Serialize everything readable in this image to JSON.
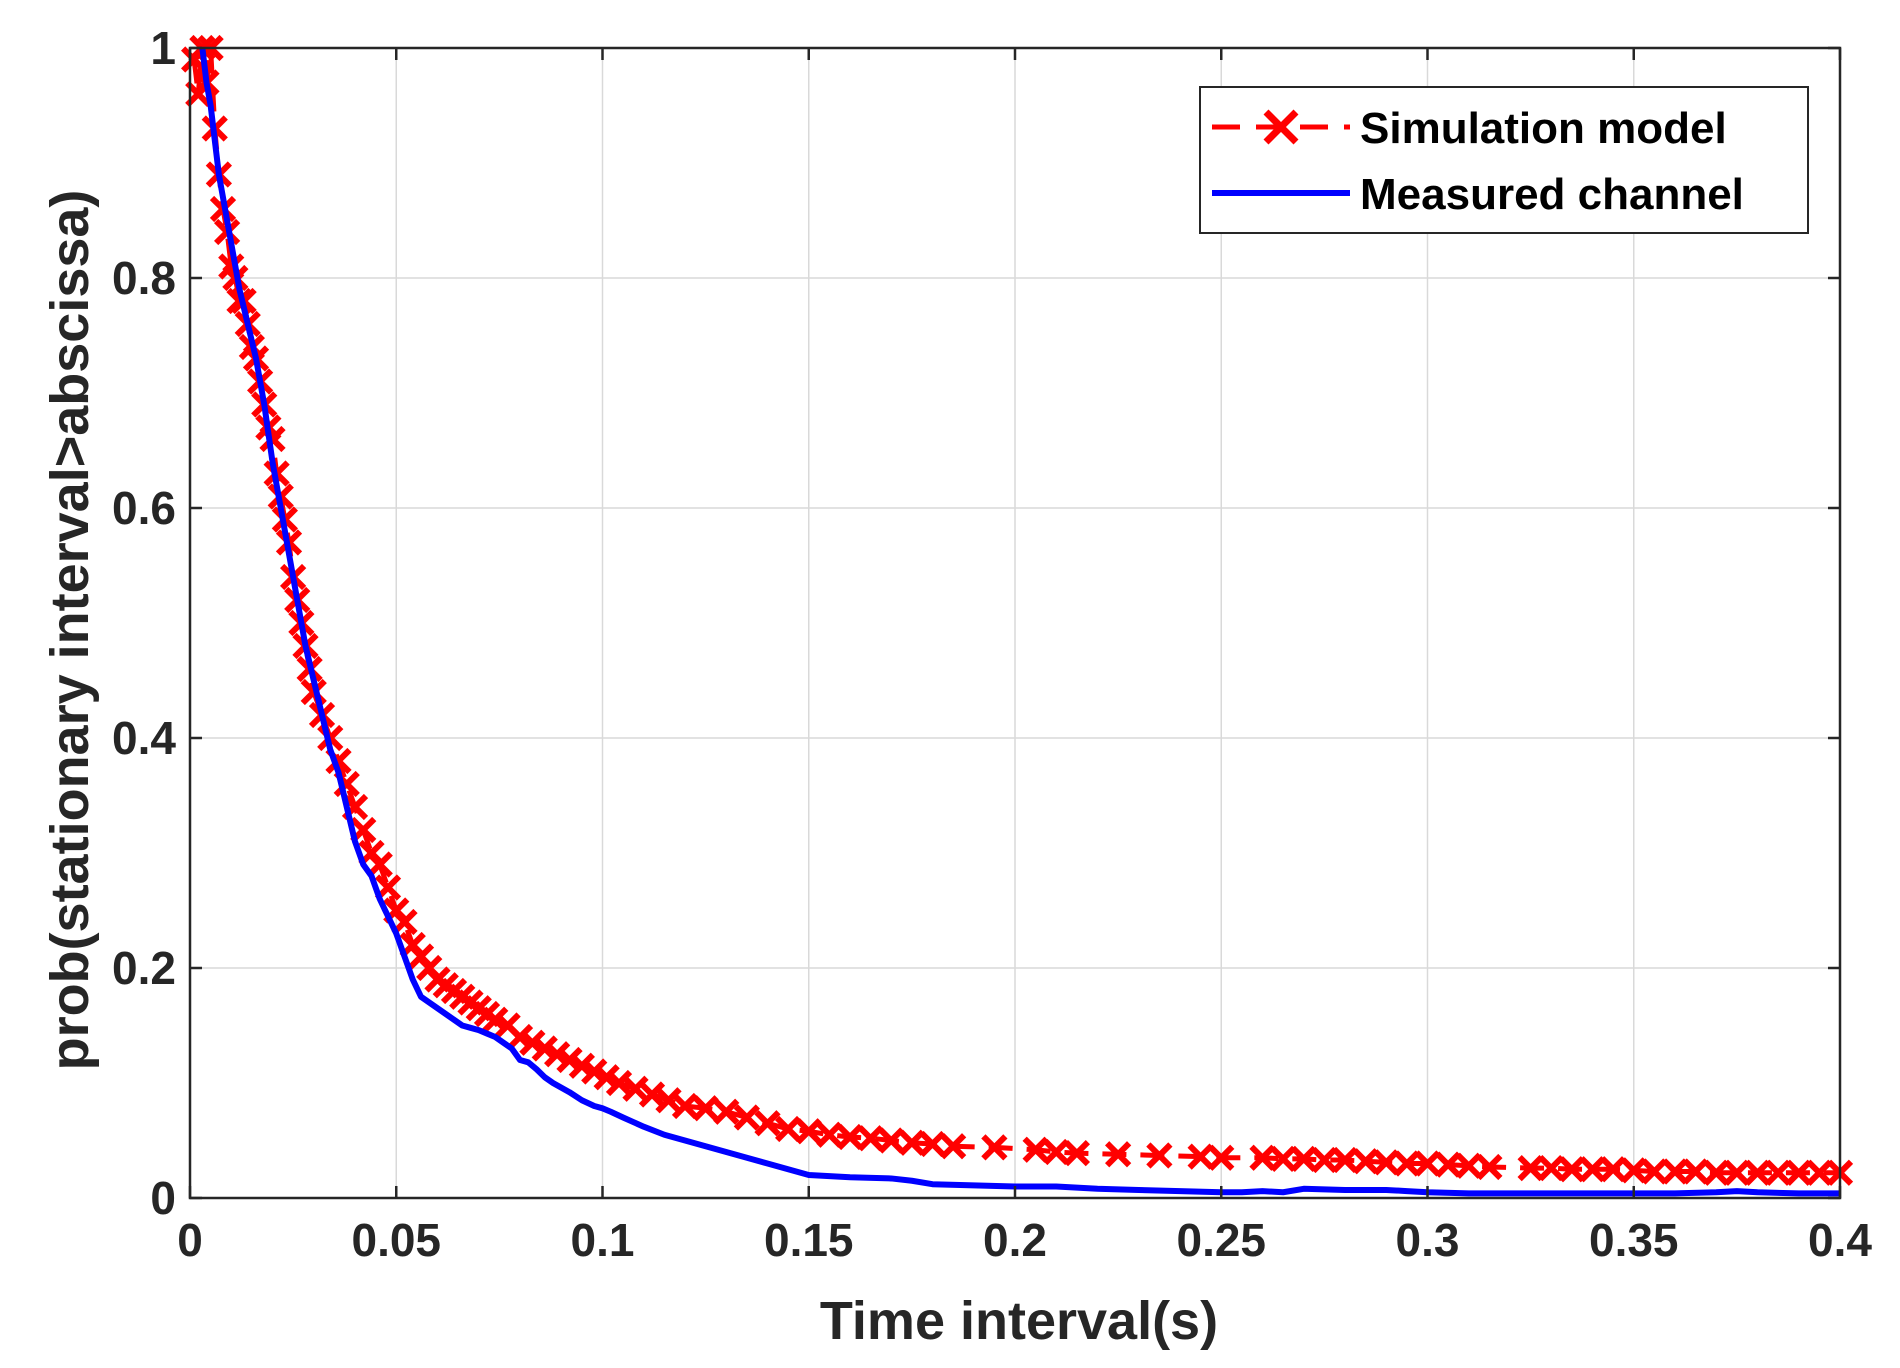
{
  "chart_data": {
    "type": "line",
    "xlabel": "Time interval(s)",
    "ylabel": "prob(stationary interval>abscissa)",
    "xlim": [
      0,
      0.4
    ],
    "ylim": [
      0,
      1
    ],
    "xticks": [
      0,
      0.05,
      0.1,
      0.15,
      0.2,
      0.25,
      0.3,
      0.35,
      0.4
    ],
    "xtick_labels": [
      "0",
      "0.05",
      "0.1",
      "0.15",
      "0.2",
      "0.25",
      "0.3",
      "0.35",
      "0.4"
    ],
    "yticks": [
      0,
      0.2,
      0.4,
      0.6,
      0.8,
      1
    ],
    "ytick_labels": [
      "0",
      "0.2",
      "0.4",
      "0.6",
      "0.8",
      "1"
    ],
    "grid": true,
    "legend_position": "top-right",
    "series": [
      {
        "name": "Simulation model",
        "style": "dashed-x-marker",
        "color": "#ff0000",
        "x": [
          0.001,
          0.002,
          0.003,
          0.004,
          0.005,
          0.006,
          0.007,
          0.008,
          0.009,
          0.01,
          0.011,
          0.012,
          0.013,
          0.014,
          0.015,
          0.016,
          0.017,
          0.018,
          0.019,
          0.02,
          0.021,
          0.022,
          0.023,
          0.024,
          0.025,
          0.026,
          0.027,
          0.028,
          0.029,
          0.03,
          0.032,
          0.034,
          0.036,
          0.038,
          0.04,
          0.042,
          0.044,
          0.046,
          0.048,
          0.05,
          0.052,
          0.054,
          0.056,
          0.058,
          0.06,
          0.062,
          0.064,
          0.066,
          0.068,
          0.07,
          0.072,
          0.074,
          0.077,
          0.08,
          0.083,
          0.086,
          0.089,
          0.092,
          0.095,
          0.098,
          0.101,
          0.104,
          0.108,
          0.112,
          0.116,
          0.12,
          0.125,
          0.13,
          0.135,
          0.14,
          0.145,
          0.15,
          0.155,
          0.16,
          0.165,
          0.17,
          0.175,
          0.18,
          0.185,
          0.195,
          0.205,
          0.21,
          0.215,
          0.225,
          0.235,
          0.245,
          0.25,
          0.26,
          0.265,
          0.27,
          0.275,
          0.28,
          0.285,
          0.29,
          0.295,
          0.3,
          0.305,
          0.31,
          0.315,
          0.325,
          0.33,
          0.335,
          0.34,
          0.345,
          0.35,
          0.355,
          0.36,
          0.365,
          0.37,
          0.375,
          0.38,
          0.385,
          0.39,
          0.395,
          0.4
        ],
        "y": [
          0.99,
          0.96,
          1.0,
          0.97,
          1.0,
          0.93,
          0.89,
          0.86,
          0.84,
          0.81,
          0.8,
          0.78,
          0.78,
          0.76,
          0.74,
          0.73,
          0.71,
          0.69,
          0.67,
          0.66,
          0.63,
          0.61,
          0.59,
          0.57,
          0.54,
          0.52,
          0.5,
          0.48,
          0.46,
          0.44,
          0.42,
          0.4,
          0.38,
          0.36,
          0.34,
          0.32,
          0.3,
          0.29,
          0.27,
          0.25,
          0.24,
          0.22,
          0.21,
          0.2,
          0.19,
          0.185,
          0.18,
          0.175,
          0.17,
          0.165,
          0.16,
          0.155,
          0.15,
          0.14,
          0.135,
          0.13,
          0.125,
          0.12,
          0.115,
          0.11,
          0.105,
          0.1,
          0.095,
          0.09,
          0.085,
          0.08,
          0.078,
          0.075,
          0.07,
          0.065,
          0.06,
          0.058,
          0.055,
          0.053,
          0.052,
          0.05,
          0.048,
          0.047,
          0.045,
          0.044,
          0.042,
          0.04,
          0.039,
          0.038,
          0.037,
          0.036,
          0.035,
          0.035,
          0.034,
          0.034,
          0.033,
          0.033,
          0.032,
          0.031,
          0.03,
          0.03,
          0.029,
          0.028,
          0.027,
          0.026,
          0.026,
          0.025,
          0.025,
          0.025,
          0.024,
          0.023,
          0.023,
          0.023,
          0.022,
          0.022,
          0.022,
          0.022,
          0.022,
          0.022,
          0.022
        ]
      },
      {
        "name": "Measured channel",
        "style": "solid",
        "color": "#0000ff",
        "x": [
          0.003,
          0.004,
          0.005,
          0.006,
          0.007,
          0.008,
          0.01,
          0.012,
          0.014,
          0.016,
          0.018,
          0.02,
          0.022,
          0.024,
          0.026,
          0.028,
          0.03,
          0.032,
          0.034,
          0.036,
          0.038,
          0.04,
          0.042,
          0.044,
          0.046,
          0.048,
          0.05,
          0.052,
          0.054,
          0.056,
          0.058,
          0.06,
          0.062,
          0.064,
          0.066,
          0.068,
          0.07,
          0.072,
          0.074,
          0.076,
          0.078,
          0.08,
          0.082,
          0.084,
          0.086,
          0.088,
          0.09,
          0.092,
          0.095,
          0.098,
          0.1,
          0.102,
          0.105,
          0.11,
          0.115,
          0.12,
          0.125,
          0.13,
          0.135,
          0.14,
          0.145,
          0.15,
          0.16,
          0.17,
          0.175,
          0.18,
          0.19,
          0.2,
          0.21,
          0.215,
          0.22,
          0.23,
          0.24,
          0.25,
          0.255,
          0.26,
          0.265,
          0.27,
          0.28,
          0.29,
          0.295,
          0.3,
          0.31,
          0.32,
          0.33,
          0.34,
          0.35,
          0.36,
          0.37,
          0.375,
          0.38,
          0.39,
          0.4
        ],
        "y": [
          1.0,
          0.97,
          0.95,
          0.92,
          0.89,
          0.87,
          0.83,
          0.79,
          0.76,
          0.73,
          0.69,
          0.64,
          0.6,
          0.56,
          0.52,
          0.48,
          0.45,
          0.42,
          0.39,
          0.37,
          0.34,
          0.31,
          0.29,
          0.28,
          0.26,
          0.245,
          0.23,
          0.21,
          0.19,
          0.175,
          0.17,
          0.165,
          0.16,
          0.155,
          0.15,
          0.148,
          0.146,
          0.143,
          0.14,
          0.135,
          0.13,
          0.12,
          0.118,
          0.112,
          0.105,
          0.1,
          0.096,
          0.092,
          0.085,
          0.08,
          0.078,
          0.075,
          0.07,
          0.062,
          0.055,
          0.05,
          0.045,
          0.04,
          0.035,
          0.03,
          0.025,
          0.02,
          0.018,
          0.017,
          0.015,
          0.012,
          0.011,
          0.01,
          0.01,
          0.009,
          0.008,
          0.007,
          0.006,
          0.005,
          0.005,
          0.006,
          0.005,
          0.008,
          0.007,
          0.007,
          0.006,
          0.005,
          0.004,
          0.004,
          0.004,
          0.004,
          0.004,
          0.004,
          0.005,
          0.006,
          0.005,
          0.004,
          0.004
        ]
      }
    ]
  }
}
